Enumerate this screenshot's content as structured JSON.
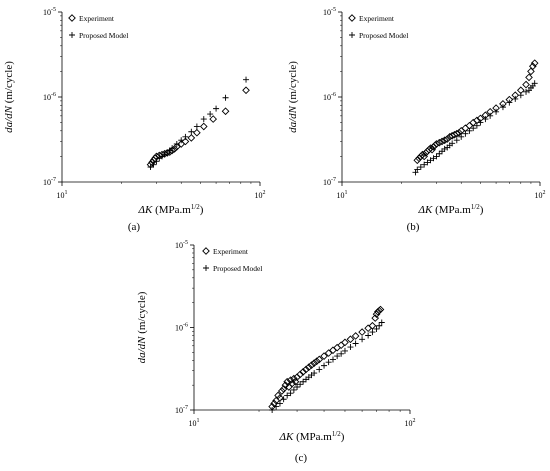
{
  "chart_data": [
    {
      "panel": "(a)",
      "type": "scatter",
      "xscale": "log",
      "yscale": "log",
      "xlim": [
        10,
        100
      ],
      "ylim": [
        1e-07,
        1e-05
      ],
      "xlabel_var": "ΔK",
      "xlabel_unit": " (MPa.m",
      "xlabel_exp": "1/2",
      "xlabel_close": ")",
      "ylabel_var": "da/dN",
      "ylabel_unit": " (m/cycle)",
      "xticks": [
        {
          "base": "10",
          "exp": "1"
        },
        {
          "base": "10",
          "exp": "2"
        }
      ],
      "yticks": [
        {
          "base": "10",
          "exp": "-7"
        },
        {
          "base": "10",
          "exp": "-6"
        },
        {
          "base": "10",
          "exp": "-5"
        }
      ],
      "legend_position": "top-left",
      "series": [
        {
          "name": "Experiment",
          "marker": "diamond",
          "x": [
            28,
            28.5,
            29,
            29.5,
            30,
            31,
            32,
            33,
            34,
            35,
            36,
            37,
            38,
            40,
            42,
            45,
            48,
            52,
            58,
            67,
            85
          ],
          "y": [
            1.6e-07,
            1.7e-07,
            1.8e-07,
            1.9e-07,
            2e-07,
            2.05e-07,
            2.1e-07,
            2.15e-07,
            2.2e-07,
            2.25e-07,
            2.35e-07,
            2.45e-07,
            2.6e-07,
            2.8e-07,
            3e-07,
            3.3e-07,
            3.8e-07,
            4.5e-07,
            5.5e-07,
            6.8e-07,
            1.2e-06
          ]
        },
        {
          "name": "Proposed Model",
          "marker": "plus",
          "x": [
            28,
            29,
            30,
            31,
            32,
            33,
            34,
            35,
            36,
            38,
            40,
            42,
            45,
            48,
            52,
            56,
            60,
            67,
            85
          ],
          "y": [
            1.5e-07,
            1.6e-07,
            1.75e-07,
            1.9e-07,
            2e-07,
            2.1e-07,
            2.2e-07,
            2.35e-07,
            2.5e-07,
            2.8e-07,
            3.1e-07,
            3.4e-07,
            3.9e-07,
            4.5e-07,
            5.5e-07,
            6.3e-07,
            7.3e-07,
            9.8e-07,
            1.6e-06
          ]
        }
      ]
    },
    {
      "panel": "(b)",
      "type": "scatter",
      "xscale": "log",
      "yscale": "log",
      "xlim": [
        10,
        100
      ],
      "ylim": [
        1e-07,
        1e-05
      ],
      "xlabel_var": "ΔK",
      "xlabel_unit": " (MPa.m",
      "xlabel_exp": "1/2",
      "xlabel_close": ")",
      "ylabel_var": "da/dN",
      "ylabel_unit": " (m/cycle)",
      "xticks": [
        {
          "base": "10",
          "exp": "1"
        },
        {
          "base": "10",
          "exp": "2"
        }
      ],
      "yticks": [
        {
          "base": "10",
          "exp": "-7"
        },
        {
          "base": "10",
          "exp": "-6"
        },
        {
          "base": "10",
          "exp": "-5"
        }
      ],
      "legend_position": "top-left",
      "series": [
        {
          "name": "Experiment",
          "marker": "diamond",
          "x": [
            24,
            24.5,
            25,
            25.5,
            26,
            26.5,
            27,
            27.5,
            28,
            28.5,
            29,
            29.5,
            30,
            31,
            32,
            33,
            34,
            35,
            36,
            37,
            38,
            39,
            40,
            42,
            44,
            46,
            48,
            50,
            53,
            56,
            60,
            65,
            70,
            75,
            80,
            85,
            88,
            90,
            92,
            94
          ],
          "y": [
            1.8e-07,
            1.9e-07,
            2e-07,
            2.1e-07,
            2e-07,
            2.2e-07,
            2.3e-07,
            2.4e-07,
            2.5e-07,
            2.4e-07,
            2.6e-07,
            2.7e-07,
            2.8e-07,
            2.9e-07,
            3e-07,
            3.1e-07,
            3.2e-07,
            3.4e-07,
            3.5e-07,
            3.6e-07,
            3.7e-07,
            3.8e-07,
            4e-07,
            4.3e-07,
            4.6e-07,
            5e-07,
            5.3e-07,
            5.6e-07,
            6.1e-07,
            6.7e-07,
            7.4e-07,
            8.3e-07,
            9.3e-07,
            1.05e-06,
            1.2e-06,
            1.4e-06,
            1.7e-06,
            2e-06,
            2.3e-06,
            2.5e-06
          ]
        },
        {
          "name": "Proposed Model",
          "marker": "plus",
          "x": [
            23.5,
            24,
            25,
            26,
            27,
            28,
            29,
            30,
            31,
            32,
            33,
            34,
            35,
            36,
            38,
            40,
            42,
            44,
            46,
            48,
            50,
            53,
            56,
            60,
            65,
            70,
            75,
            80,
            85,
            88,
            90,
            92,
            94
          ],
          "y": [
            1.3e-07,
            1.4e-07,
            1.5e-07,
            1.6e-07,
            1.7e-07,
            1.8e-07,
            1.9e-07,
            2e-07,
            2.15e-07,
            2.3e-07,
            2.45e-07,
            2.55e-07,
            2.7e-07,
            2.85e-07,
            3.1e-07,
            3.4e-07,
            3.7e-07,
            4e-07,
            4.3e-07,
            4.6e-07,
            5e-07,
            5.5e-07,
            6e-07,
            6.7e-07,
            7.6e-07,
            8.6e-07,
            9.5e-07,
            1.05e-06,
            1.15e-06,
            1.2e-06,
            1.28e-06,
            1.35e-06,
            1.45e-06
          ]
        }
      ]
    },
    {
      "panel": "(c)",
      "type": "scatter",
      "xscale": "log",
      "yscale": "log",
      "xlim": [
        10,
        100
      ],
      "ylim": [
        1e-07,
        1e-05
      ],
      "xlabel_var": "ΔK",
      "xlabel_unit": " (MPa.m",
      "xlabel_exp": "1/2",
      "xlabel_close": ")",
      "ylabel_var": "da/dN",
      "ylabel_unit": " (m/cycle)",
      "xticks": [
        {
          "base": "10",
          "exp": "1"
        },
        {
          "base": "10",
          "exp": "2"
        }
      ],
      "yticks": [
        {
          "base": "10",
          "exp": "-7"
        },
        {
          "base": "10",
          "exp": "-6"
        },
        {
          "base": "10",
          "exp": "-5"
        }
      ],
      "legend_position": "top-left",
      "series": [
        {
          "name": "Experiment",
          "marker": "diamond",
          "x": [
            23,
            23.5,
            24,
            24.5,
            25,
            25.5,
            26,
            26.5,
            27,
            27.5,
            28,
            28.5,
            29,
            29.5,
            30,
            31,
            32,
            33,
            34,
            35,
            36,
            37,
            38,
            40,
            42,
            44,
            46,
            48,
            50,
            53,
            56,
            60,
            64,
            67,
            69,
            70,
            71,
            72,
            73
          ],
          "y": [
            1.1e-07,
            1.2e-07,
            1.3e-07,
            1.5e-07,
            1.4e-07,
            1.7e-07,
            1.8e-07,
            2e-07,
            2.2e-07,
            1.9e-07,
            2.3e-07,
            2.1e-07,
            2.4e-07,
            2.2e-07,
            2.5e-07,
            2.7e-07,
            2.9e-07,
            3.1e-07,
            3.3e-07,
            3.5e-07,
            3.7e-07,
            3.9e-07,
            4.1e-07,
            4.5e-07,
            4.9e-07,
            5.3e-07,
            5.7e-07,
            6.1e-07,
            6.6e-07,
            7.2e-07,
            7.9e-07,
            8.8e-07,
            9.8e-07,
            1.05e-06,
            1.3e-06,
            1.45e-06,
            1.55e-06,
            1.6e-06,
            1.65e-06
          ]
        },
        {
          "name": "Proposed Model",
          "marker": "plus",
          "x": [
            23,
            24,
            25,
            26,
            27,
            28,
            29,
            30,
            31,
            32,
            33,
            34,
            35,
            36,
            38,
            40,
            42,
            44,
            46,
            48,
            50,
            53,
            56,
            60,
            64,
            67,
            70,
            72,
            74
          ],
          "y": [
            1e-07,
            1.1e-07,
            1.2e-07,
            1.35e-07,
            1.5e-07,
            1.6e-07,
            1.75e-07,
            1.9e-07,
            2.05e-07,
            2.2e-07,
            2.35e-07,
            2.5e-07,
            2.65e-07,
            2.8e-07,
            3.1e-07,
            3.45e-07,
            3.8e-07,
            4.1e-07,
            4.5e-07,
            4.8e-07,
            5.2e-07,
            5.8e-07,
            6.4e-07,
            7.2e-07,
            8e-07,
            8.8e-07,
            9.6e-07,
            1.05e-06,
            1.15e-06
          ]
        }
      ]
    }
  ]
}
